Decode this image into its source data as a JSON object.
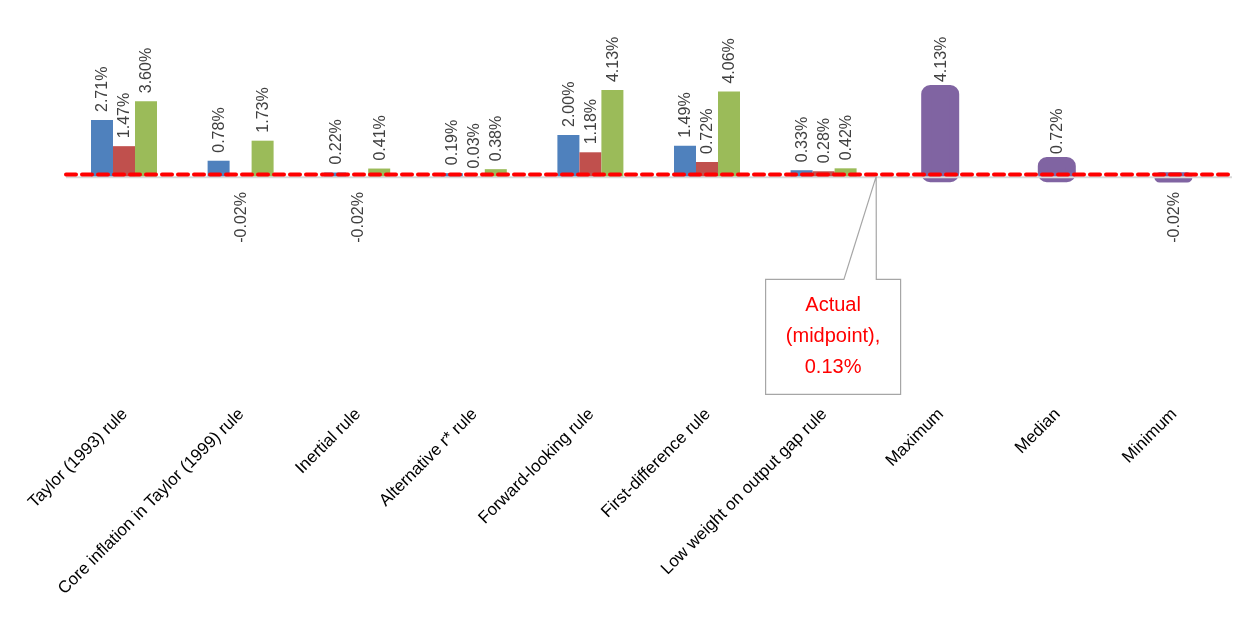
{
  "chart_data": {
    "type": "bar",
    "categories": [
      "Taylor (1993) rule",
      "Core inflation in Taylor (1999) rule",
      "Inertial rule",
      "Alternative r* rule",
      "Forward-looking rule",
      "First-difference rule",
      "Low weight on output gap rule",
      "Maximum",
      "Median",
      "Minimum"
    ],
    "series": [
      {
        "color": "#4f81bd",
        "values": [
          2.71,
          0.78,
          0.22,
          0.19,
          2.0,
          1.49,
          0.33,
          null,
          null,
          null
        ],
        "value_labels": [
          "2.71%",
          "0.78%",
          "0.22%",
          "0.19%",
          "2.00%",
          "1.49%",
          "0.33%",
          null,
          null,
          null
        ]
      },
      {
        "color": "#c0504d",
        "values": [
          1.47,
          -0.02,
          -0.02,
          0.03,
          1.18,
          0.72,
          0.28,
          null,
          null,
          null
        ],
        "value_labels": [
          "1.47%",
          "-0.02%",
          "-0.02%",
          "0.03%",
          "1.18%",
          "0.72%",
          "0.28%",
          null,
          null,
          null
        ]
      },
      {
        "color": "#9bbb59",
        "values": [
          3.6,
          1.73,
          0.41,
          0.38,
          4.13,
          4.06,
          0.42,
          null,
          null,
          null
        ],
        "value_labels": [
          "3.60%",
          "1.73%",
          "0.41%",
          "0.38%",
          "4.13%",
          "4.06%",
          "0.42%",
          null,
          null,
          null
        ]
      },
      {
        "color": "#8064a2",
        "values": [
          null,
          null,
          null,
          null,
          null,
          null,
          null,
          4.13,
          0.72,
          -0.02
        ],
        "value_labels": [
          null,
          null,
          null,
          null,
          null,
          null,
          null,
          "4.13%",
          "0.72%",
          "-0.02%"
        ]
      }
    ],
    "tick_labels": "x",
    "ref_lines": [
      {
        "axis": "y",
        "value": 0.13,
        "label": "Actual (midpoint), 0.13%",
        "color": "#ff0000",
        "line_style": "dashed"
      }
    ]
  }
}
